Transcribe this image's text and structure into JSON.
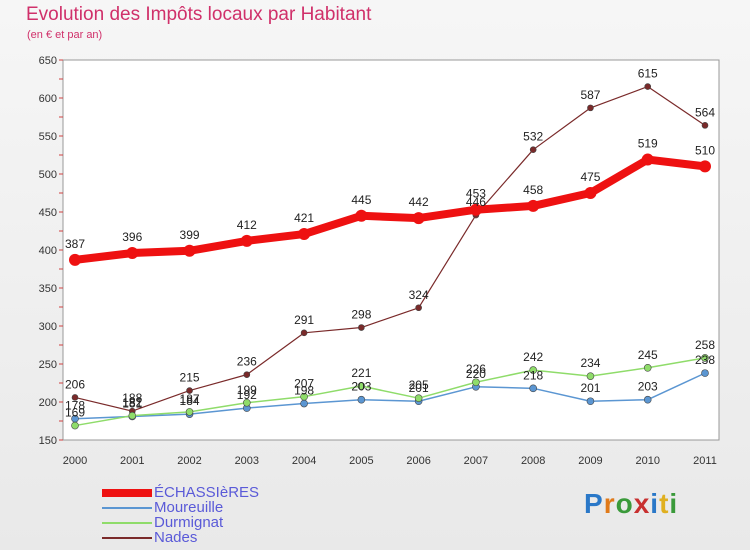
{
  "header": {
    "title": "Evolution des Impôts locaux par Habitant",
    "subtitle": "(en € et par an)"
  },
  "logo": {
    "text": "Proxiti"
  },
  "chart_data": {
    "type": "line",
    "title": "Evolution des Impôts locaux par Habitant",
    "subtitle": "(en € et par an)",
    "xlabel": "",
    "ylabel": "",
    "x": [
      "2000",
      "2001",
      "2002",
      "2003",
      "2004",
      "2005",
      "2006",
      "2007",
      "2008",
      "2009",
      "2010",
      "2011"
    ],
    "ylim": [
      150,
      650
    ],
    "yticks": [
      150,
      200,
      250,
      300,
      350,
      400,
      450,
      500,
      550,
      600,
      650
    ],
    "legend_position": "bottom-left",
    "series": [
      {
        "name": "ÉCHASSIèRES",
        "color": "#ee1111",
        "values": [
          387,
          396,
          399,
          412,
          421,
          445,
          442,
          453,
          458,
          475,
          519,
          510
        ]
      },
      {
        "name": "Moureuille",
        "color": "#5b96d2",
        "values": [
          178,
          181,
          184,
          192,
          198,
          203,
          201,
          220,
          218,
          201,
          203,
          238
        ]
      },
      {
        "name": "Durmignat",
        "color": "#8fdc6a",
        "values": [
          169,
          182,
          187,
          199,
          207,
          221,
          205,
          226,
          242,
          234,
          245,
          258
        ]
      },
      {
        "name": "Nades",
        "color": "#7a2a2a",
        "values": [
          206,
          188,
          215,
          236,
          291,
          298,
          324,
          446,
          532,
          587,
          615,
          564
        ]
      }
    ]
  }
}
